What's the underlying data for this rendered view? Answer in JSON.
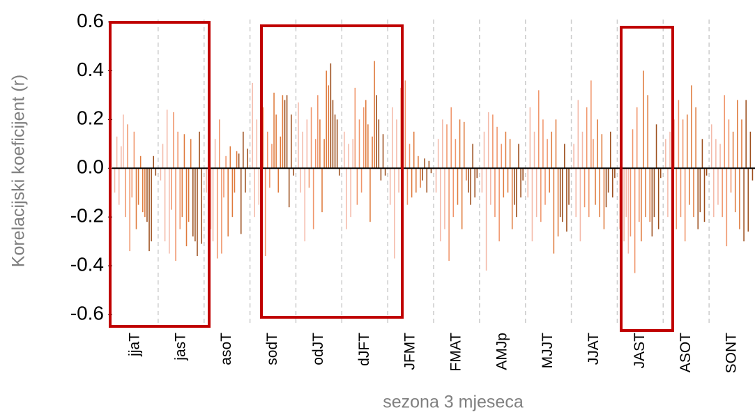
{
  "chart_data": {
    "type": "bar",
    "x_label": "sezona 3 mjeseca",
    "y_label": "Korelacijski koeficijent (r)",
    "categories": [
      "jjaT",
      "jasT",
      "asoT",
      "sodT",
      "odJT",
      "dJFT",
      "JFMT",
      "FMAT",
      "AMJp",
      "MJJT",
      "JJAT",
      "JAST",
      "ASOT",
      "SONT"
    ],
    "ylim": [
      -0.64,
      0.61
    ],
    "yticks": [
      0.6,
      0.4,
      0.2,
      {
        "value": 0,
        "label": "0.0"
      },
      -0.2,
      -0.4,
      -0.6
    ],
    "series": [
      {
        "color": "#f4b9a8",
        "values": [
          [
            -0.1,
            0.13,
            -0.15,
            0.09,
            0.22
          ],
          [
            -0.05,
            0.1,
            -0.3,
            0.24,
            -0.35
          ],
          [
            -0.1,
            0.15,
            -0.25,
            -0.3,
            0.12
          ],
          [
            0.35,
            -0.2,
            0.2,
            -0.15,
            -0.1
          ],
          [
            0.27,
            -0.1,
            0.15,
            -0.3,
            0.2
          ],
          [
            0.15,
            -0.25,
            0.1,
            -0.2,
            0.12
          ],
          [
            -0.15,
            0.25,
            -0.37,
            0.2,
            -0.1
          ],
          [
            -0.1,
            0.12,
            -0.3,
            0.2,
            -0.25
          ],
          [
            -0.1,
            0.15,
            -0.42,
            0.23,
            -0.15
          ],
          [
            -0.12,
            0.25,
            -0.3,
            0.15,
            -0.2
          ],
          [
            0.1,
            -0.2,
            0.28,
            -0.3,
            0.15
          ],
          [
            -0.25,
            0.12,
            -0.3,
            -0.2,
            -0.35
          ],
          [
            0.12,
            -0.2,
            0.15,
            -0.1,
            0.2
          ],
          [
            0.18,
            -0.2,
            0.12,
            -0.15,
            0.1
          ]
        ]
      },
      {
        "color": "#f0956a",
        "values": [
          [
            -0.2,
            0.18,
            -0.34,
            -0.12,
            0.15
          ],
          [
            -0.17,
            0.23,
            -0.38,
            0.15,
            -0.25
          ],
          [
            -0.37,
            0.2,
            -0.35,
            -0.12,
            0.05
          ],
          [
            0.25,
            -0.36,
            0.15,
            -0.08,
            0.1
          ],
          [
            -0.08,
            0.25,
            -0.25,
            0.12,
            0.3
          ],
          [
            0.33,
            -0.15,
            0.2,
            -0.1,
            0.25
          ],
          [
            0.33,
            -0.2,
            0.36,
            -0.15,
            0.1
          ],
          [
            0.18,
            -0.38,
            0.25,
            -0.2,
            0.12
          ],
          [
            0.22,
            -0.2,
            0.17,
            -0.3,
            0.1
          ],
          [
            0.32,
            -0.22,
            0.2,
            -0.15,
            0.12
          ],
          [
            -0.16,
            0.25,
            -0.2,
            0.36,
            0.12
          ],
          [
            -0.28,
            0.16,
            -0.43,
            0.25,
            -0.22
          ],
          [
            -0.25,
            0.28,
            -0.2,
            0.2,
            -0.3
          ],
          [
            -0.2,
            0.3,
            -0.32,
            0.2,
            -0.1
          ]
        ]
      },
      {
        "color": "#df7a3c",
        "values": [
          [
            -0.25,
            -0.15,
            0.05,
            -0.18,
            -0.2
          ],
          [
            -0.2,
            0.14,
            -0.32,
            -0.22,
            0.12
          ],
          [
            -0.28,
            0.09,
            -0.2,
            -0.1,
            0.07
          ],
          [
            0.31,
            0.22,
            -0.1,
            0.13,
            0.3
          ],
          [
            0.2,
            -0.18,
            0.12,
            0.4,
            0.34
          ],
          [
            0.28,
            0.18,
            -0.22,
            0.13,
            0.44
          ],
          [
            -0.12,
            0.15,
            -0.1,
            0.05,
            -0.08
          ],
          [
            -0.15,
            0.2,
            -0.25,
            0.19,
            -0.05
          ],
          [
            -0.12,
            0.15,
            -0.1,
            0.12,
            -0.25
          ],
          [
            -0.1,
            0.15,
            -0.35,
            0.2,
            -0.28
          ],
          [
            -0.15,
            0.2,
            -0.2,
            0.14,
            -0.25
          ],
          [
            -0.3,
            0.4,
            -0.2,
            0.3,
            -0.22
          ],
          [
            0.22,
            -0.15,
            0.34,
            -0.2,
            0.25
          ],
          [
            0.15,
            -0.18,
            0.28,
            -0.25,
            0.2
          ]
        ]
      },
      {
        "color": "#9c4e1c",
        "values": [
          [
            -0.22,
            -0.34,
            -0.3,
            0.05,
            -0.03
          ],
          [
            -0.28,
            -0.3,
            -0.36,
            0.15,
            -0.31
          ],
          [
            0.06,
            -0.27,
            0.15,
            -0.1,
            0.08
          ],
          [
            0.28,
            0.3,
            -0.16,
            0.22,
            -0.03
          ],
          [
            0.43,
            0.28,
            0.22,
            0.2,
            -0.03
          ],
          [
            0.3,
            0.2,
            -0.05,
            0.14,
            -0.03
          ],
          [
            -0.05,
            0.04,
            -0.1,
            0.03,
            -0.02
          ],
          [
            -0.1,
            -0.15,
            0.1,
            -0.12,
            -0.04
          ],
          [
            -0.15,
            -0.2,
            0.1,
            -0.12,
            -0.05
          ],
          [
            -0.2,
            -0.22,
            0.1,
            -0.26,
            -0.15
          ],
          [
            -0.16,
            -0.1,
            0.15,
            -0.12,
            -0.04
          ],
          [
            -0.28,
            -0.2,
            0.18,
            -0.25,
            -0.04
          ],
          [
            -0.25,
            -0.18,
            0.12,
            -0.22,
            -0.03
          ],
          [
            -0.3,
            0.28,
            -0.26,
            0.15,
            -0.05
          ]
        ]
      }
    ]
  }
}
